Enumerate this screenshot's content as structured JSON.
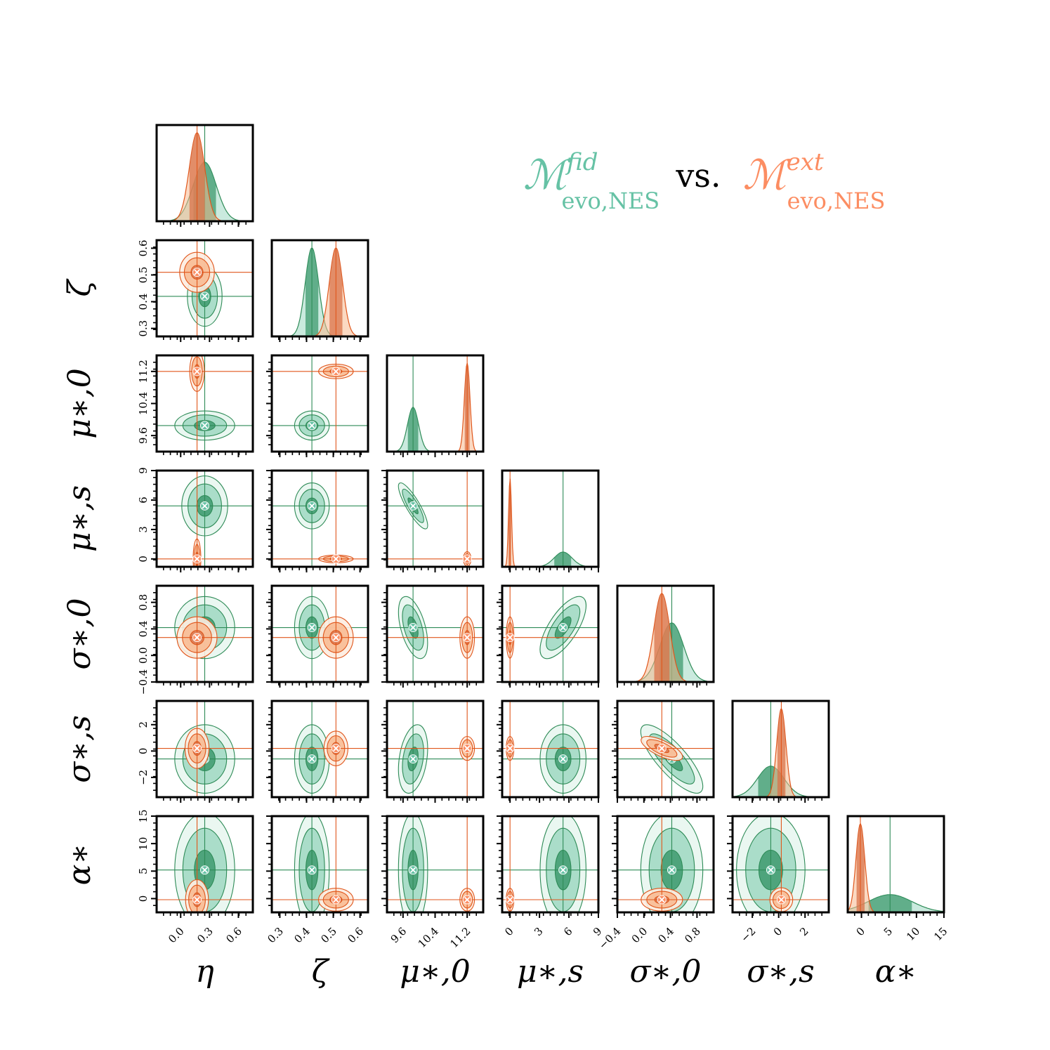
{
  "legend": {
    "fid": {
      "symbol": "ℳ",
      "sup": "fid",
      "sub": "evo,NES",
      "color": "#66c2a5"
    },
    "vs": "vs.",
    "ext": {
      "symbol": "ℳ",
      "sup": "ext",
      "sub": "evo,NES",
      "color": "#fc8d62"
    }
  },
  "colors": {
    "green_line": "#2e8b57",
    "green_fill_light": "#e8f6f0",
    "green_fill_mid": "#9fd8c2",
    "green_fill_dark": "#3e9a6e",
    "orange_line": "#e0561b",
    "orange_fill_light": "#fdece0",
    "orange_fill_mid": "#f8b98f",
    "orange_fill_dark": "#d9734a"
  },
  "chart_data": {
    "type": "corner",
    "parameters": [
      {
        "key": "eta",
        "label": "η",
        "range": [
          -0.25,
          0.75
        ],
        "ticks": [
          "0.0",
          "0.3",
          "0.6"
        ],
        "tick_values": [
          0.0,
          0.3,
          0.6
        ]
      },
      {
        "key": "zeta",
        "label": "ζ",
        "range": [
          0.27,
          0.63
        ],
        "ticks": [
          "0.3",
          "0.4",
          "0.5",
          "0.6"
        ],
        "tick_values": [
          0.3,
          0.4,
          0.5,
          0.6
        ]
      },
      {
        "key": "mu0",
        "label": "μ∗,0",
        "range": [
          9.2,
          11.6
        ],
        "ticks": [
          "9.6",
          "10.4",
          "11.2"
        ],
        "tick_values": [
          9.6,
          10.4,
          11.2
        ]
      },
      {
        "key": "mus",
        "label": "μ∗,s",
        "range": [
          -0.8,
          9.0
        ],
        "ticks": [
          "0",
          "3",
          "6",
          "9"
        ],
        "tick_values": [
          0,
          3,
          6,
          9
        ]
      },
      {
        "key": "sig0",
        "label": "σ∗,0",
        "range": [
          -0.4,
          1.05
        ],
        "ticks": [
          "−0.4",
          "0.0",
          "0.4",
          "0.8"
        ],
        "tick_values": [
          -0.4,
          0.0,
          0.4,
          0.8
        ]
      },
      {
        "key": "sigs",
        "label": "σ∗,s",
        "range": [
          -3.5,
          3.8
        ],
        "ticks": [
          "−2",
          "0",
          "2"
        ],
        "tick_values": [
          -2,
          0,
          2
        ]
      },
      {
        "key": "alpha",
        "label": "α∗",
        "range": [
          -2.5,
          15.0
        ],
        "ticks": [
          "0",
          "5",
          "10",
          "15"
        ],
        "tick_values": [
          0,
          5,
          10,
          15
        ]
      }
    ],
    "series": [
      {
        "name": "ℳ fid evo,NES",
        "color": "green",
        "best_fit": [
          0.25,
          0.42,
          9.85,
          5.4,
          0.42,
          -0.6,
          5.2
        ],
        "sigma": [
          0.12,
          0.025,
          0.14,
          0.9,
          0.18,
          1.0,
          4.0
        ]
      },
      {
        "name": "ℳ ext evo,NES",
        "color": "orange",
        "best_fit": [
          0.17,
          0.51,
          11.2,
          0.0,
          0.27,
          0.2,
          -0.2
        ],
        "sigma": [
          0.08,
          0.025,
          0.07,
          0.15,
          0.12,
          0.35,
          0.8
        ]
      }
    ]
  }
}
